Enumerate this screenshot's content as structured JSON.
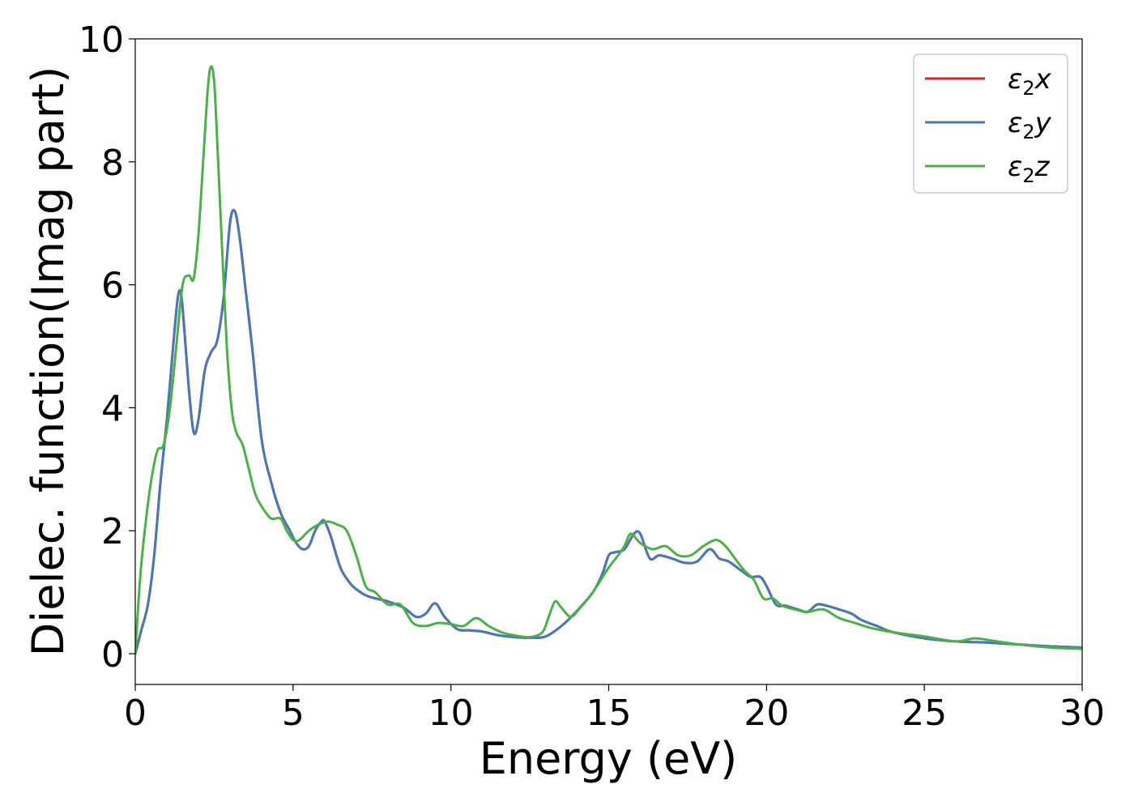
{
  "chart_data": {
    "type": "line",
    "xlabel": "Energy (eV)",
    "ylabel": "Dielec. function(Imag part)",
    "xlim": [
      0,
      30
    ],
    "ylim": [
      -0.5,
      10.0
    ],
    "xticks": [
      0,
      5,
      10,
      15,
      20,
      25,
      30
    ],
    "yticks": [
      0,
      2,
      4,
      6,
      8,
      10
    ],
    "grid": false,
    "legend_position": "top-right",
    "series": [
      {
        "name": "ε2x",
        "legend_base": "ε",
        "legend_sub": "2",
        "legend_tail": "x",
        "color": "#d62728",
        "x": [
          0,
          0.2,
          0.4,
          0.6,
          0.8,
          1.0,
          1.2,
          1.35,
          1.45,
          1.55,
          1.7,
          1.85,
          2.0,
          2.2,
          2.4,
          2.6,
          2.8,
          3.0,
          3.15,
          3.3,
          3.5,
          3.7,
          4.0,
          4.3,
          4.6,
          4.9,
          5.1,
          5.3,
          5.5,
          5.7,
          5.9,
          6.0,
          6.2,
          6.5,
          6.8,
          7.0,
          7.3,
          7.6,
          8.0,
          8.5,
          8.9,
          9.2,
          9.5,
          9.8,
          10.2,
          10.6,
          11.0,
          11.5,
          12.0,
          12.5,
          13.0,
          13.5,
          14.0,
          14.5,
          14.8,
          15.0,
          15.2,
          15.5,
          15.8,
          16.0,
          16.3,
          16.6,
          17.0,
          17.4,
          17.8,
          18.2,
          18.5,
          18.8,
          19.2,
          19.5,
          19.8,
          20.0,
          20.3,
          20.6,
          21.0,
          21.3,
          21.6,
          21.9,
          22.3,
          22.7,
          23.0,
          23.5,
          24.0,
          25.0,
          26.0,
          27.0,
          28.0,
          29.0,
          30.0
        ],
        "values": [
          0.0,
          0.4,
          0.8,
          1.6,
          2.8,
          3.8,
          5.0,
          5.8,
          5.85,
          5.3,
          4.3,
          3.6,
          3.8,
          4.6,
          4.9,
          5.1,
          5.8,
          7.0,
          7.2,
          6.8,
          5.9,
          5.0,
          3.5,
          2.8,
          2.3,
          2.0,
          1.8,
          1.7,
          1.75,
          2.0,
          2.15,
          2.15,
          1.9,
          1.4,
          1.15,
          1.05,
          0.95,
          0.9,
          0.85,
          0.75,
          0.6,
          0.65,
          0.82,
          0.6,
          0.4,
          0.38,
          0.36,
          0.3,
          0.27,
          0.26,
          0.28,
          0.45,
          0.7,
          1.0,
          1.3,
          1.6,
          1.65,
          1.7,
          1.95,
          1.95,
          1.55,
          1.6,
          1.55,
          1.48,
          1.5,
          1.7,
          1.55,
          1.5,
          1.35,
          1.25,
          1.25,
          1.1,
          0.8,
          0.78,
          0.72,
          0.68,
          0.8,
          0.78,
          0.72,
          0.65,
          0.55,
          0.45,
          0.35,
          0.25,
          0.2,
          0.18,
          0.15,
          0.12,
          0.1
        ]
      },
      {
        "name": "ε2y",
        "legend_base": "ε",
        "legend_sub": "2",
        "legend_tail": "y",
        "color": "#4878b8",
        "x": [
          0,
          0.2,
          0.4,
          0.6,
          0.8,
          1.0,
          1.2,
          1.35,
          1.45,
          1.55,
          1.7,
          1.85,
          2.0,
          2.2,
          2.4,
          2.6,
          2.8,
          3.0,
          3.15,
          3.3,
          3.5,
          3.7,
          4.0,
          4.3,
          4.6,
          4.9,
          5.1,
          5.3,
          5.5,
          5.7,
          5.9,
          6.0,
          6.2,
          6.5,
          6.8,
          7.0,
          7.3,
          7.6,
          8.0,
          8.5,
          8.9,
          9.2,
          9.5,
          9.8,
          10.2,
          10.6,
          11.0,
          11.5,
          12.0,
          12.5,
          13.0,
          13.5,
          14.0,
          14.5,
          14.8,
          15.0,
          15.2,
          15.5,
          15.8,
          16.0,
          16.3,
          16.6,
          17.0,
          17.4,
          17.8,
          18.2,
          18.5,
          18.8,
          19.2,
          19.5,
          19.8,
          20.0,
          20.3,
          20.6,
          21.0,
          21.3,
          21.6,
          21.9,
          22.3,
          22.7,
          23.0,
          23.5,
          24.0,
          25.0,
          26.0,
          27.0,
          28.0,
          29.0,
          30.0
        ],
        "values": [
          0.0,
          0.4,
          0.8,
          1.6,
          2.8,
          3.8,
          5.0,
          5.8,
          5.85,
          5.3,
          4.3,
          3.6,
          3.8,
          4.6,
          4.9,
          5.1,
          5.8,
          7.0,
          7.2,
          6.8,
          5.9,
          5.0,
          3.5,
          2.8,
          2.3,
          2.0,
          1.8,
          1.7,
          1.75,
          2.0,
          2.15,
          2.15,
          1.9,
          1.4,
          1.15,
          1.05,
          0.95,
          0.9,
          0.85,
          0.75,
          0.6,
          0.65,
          0.82,
          0.6,
          0.4,
          0.38,
          0.36,
          0.3,
          0.27,
          0.26,
          0.28,
          0.45,
          0.7,
          1.0,
          1.3,
          1.6,
          1.65,
          1.7,
          1.95,
          1.95,
          1.55,
          1.6,
          1.55,
          1.48,
          1.5,
          1.7,
          1.55,
          1.5,
          1.35,
          1.25,
          1.25,
          1.1,
          0.8,
          0.78,
          0.72,
          0.68,
          0.8,
          0.78,
          0.72,
          0.65,
          0.55,
          0.45,
          0.35,
          0.25,
          0.2,
          0.18,
          0.15,
          0.12,
          0.1
        ]
      },
      {
        "name": "ε2z",
        "legend_base": "ε",
        "legend_sub": "2",
        "legend_tail": "z",
        "color": "#4daf4a",
        "x": [
          0,
          0.15,
          0.3,
          0.5,
          0.7,
          0.9,
          1.1,
          1.3,
          1.5,
          1.7,
          1.85,
          2.0,
          2.15,
          2.3,
          2.4,
          2.5,
          2.6,
          2.75,
          2.9,
          3.05,
          3.2,
          3.4,
          3.6,
          3.8,
          4.0,
          4.3,
          4.6,
          4.8,
          5.0,
          5.2,
          5.5,
          5.8,
          6.1,
          6.4,
          6.7,
          7.0,
          7.3,
          7.6,
          8.0,
          8.4,
          8.8,
          9.2,
          9.6,
          10.0,
          10.4,
          10.8,
          11.2,
          11.6,
          12.0,
          12.5,
          12.9,
          13.1,
          13.3,
          13.5,
          13.8,
          14.1,
          14.5,
          15.0,
          15.3,
          15.5,
          15.7,
          16.0,
          16.4,
          16.8,
          17.2,
          17.6,
          18.0,
          18.4,
          18.7,
          19.0,
          19.3,
          19.6,
          19.9,
          20.2,
          20.5,
          20.9,
          21.3,
          21.8,
          22.3,
          22.8,
          23.3,
          24.0,
          25.0,
          26.0,
          26.6,
          27.3,
          28.0,
          29.0,
          30.0
        ],
        "values": [
          0.0,
          1.2,
          2.0,
          2.8,
          3.3,
          3.4,
          4.0,
          5.0,
          6.0,
          6.15,
          6.1,
          6.8,
          8.0,
          9.2,
          9.55,
          9.3,
          8.3,
          6.6,
          5.0,
          4.0,
          3.6,
          3.4,
          3.0,
          2.6,
          2.4,
          2.2,
          2.2,
          2.0,
          1.85,
          1.85,
          2.0,
          2.1,
          2.15,
          2.1,
          2.0,
          1.6,
          1.1,
          1.0,
          0.8,
          0.8,
          0.5,
          0.45,
          0.5,
          0.48,
          0.45,
          0.58,
          0.45,
          0.35,
          0.3,
          0.27,
          0.35,
          0.6,
          0.85,
          0.75,
          0.6,
          0.75,
          1.0,
          1.4,
          1.6,
          1.75,
          1.95,
          1.8,
          1.7,
          1.75,
          1.6,
          1.6,
          1.75,
          1.85,
          1.75,
          1.55,
          1.35,
          1.2,
          0.9,
          0.9,
          0.78,
          0.72,
          0.68,
          0.72,
          0.58,
          0.5,
          0.42,
          0.35,
          0.28,
          0.2,
          0.25,
          0.2,
          0.15,
          0.1,
          0.08
        ]
      }
    ]
  }
}
